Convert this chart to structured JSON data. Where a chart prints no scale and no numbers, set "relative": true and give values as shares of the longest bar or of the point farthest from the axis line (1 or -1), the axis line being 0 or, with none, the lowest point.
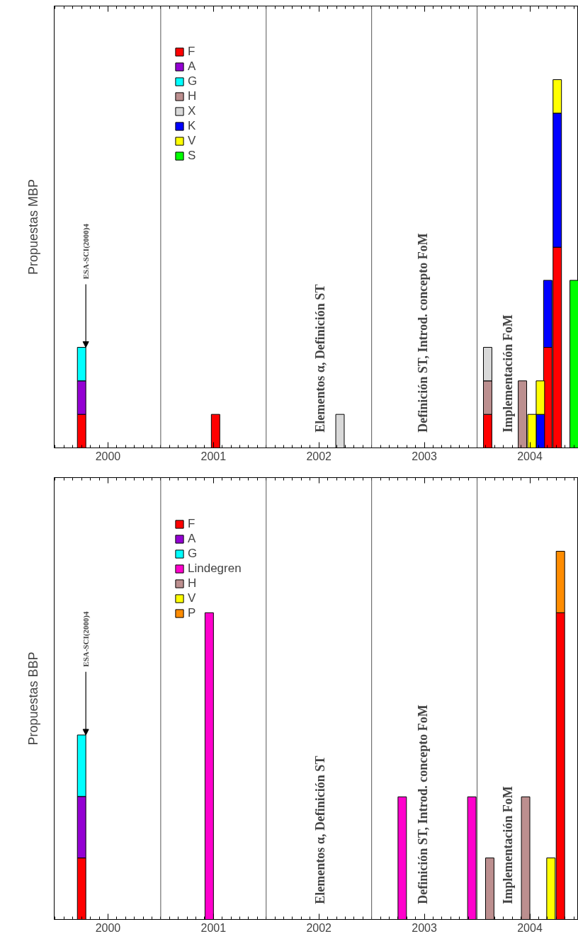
{
  "chart_data": [
    {
      "type": "bar",
      "stacked": true,
      "relative": true,
      "ylabel": "Propuestas MBP",
      "legend": "top left",
      "xlim": [
        1999.49,
        2004.46
      ],
      "xticks": [
        2000,
        2001,
        2002,
        2003,
        2004
      ],
      "x": [
        1999.75,
        2001.02,
        2002.2,
        2003.6,
        2003.93,
        2004.02,
        2004.1,
        2004.17,
        2004.26,
        2004.42
      ],
      "series": [
        {
          "name": "F",
          "color": "#ff0000",
          "values": [
            0.091,
            0.091,
            null,
            0.091,
            null,
            null,
            null,
            0.273,
            0.545,
            null
          ]
        },
        {
          "name": "A",
          "color": "#9400d3",
          "values": [
            0.091,
            null,
            null,
            null,
            null,
            null,
            null,
            null,
            null,
            null
          ]
        },
        {
          "name": "G",
          "color": "#00ffff",
          "values": [
            0.091,
            null,
            null,
            null,
            null,
            null,
            null,
            null,
            null,
            null
          ]
        },
        {
          "name": "H",
          "color": "#bc8f8f",
          "values": [
            null,
            null,
            null,
            0.091,
            0.182,
            null,
            null,
            null,
            null,
            null
          ]
        },
        {
          "name": "X",
          "color": "#d9d9d9",
          "values": [
            null,
            null,
            0.091,
            0.091,
            null,
            null,
            null,
            null,
            null,
            null
          ]
        },
        {
          "name": "K",
          "color": "#0000ff",
          "values": [
            null,
            null,
            null,
            null,
            null,
            null,
            0.091,
            0.182,
            0.364,
            null
          ]
        },
        {
          "name": "V",
          "color": "#ffff00",
          "values": [
            null,
            null,
            null,
            null,
            null,
            0.091,
            0.091,
            null,
            0.091,
            null
          ]
        },
        {
          "name": "S",
          "color": "#00ff00",
          "values": [
            null,
            null,
            null,
            null,
            null,
            null,
            null,
            null,
            null,
            0.455
          ]
        }
      ],
      "ref_lines": [
        {
          "axis": "x",
          "value": 2000.5,
          "label": null,
          "color": "#555555"
        },
        {
          "axis": "x",
          "value": 2001.5,
          "label": null,
          "color": "#555555"
        },
        {
          "axis": "x",
          "value": 2002.5,
          "label": null,
          "color": "#555555"
        },
        {
          "axis": "x",
          "value": 2003.5,
          "label": null,
          "color": "#555555"
        }
      ],
      "annotations": [
        "ESA-SCI(2000)4",
        "Elementos α, Definición ST",
        "Definición ST, Introd. concepto FoM",
        "Implementación FoM"
      ]
    },
    {
      "type": "bar",
      "stacked": true,
      "relative": true,
      "ylabel": "Propuestas BBP",
      "legend": "top left",
      "xlim": [
        1999.49,
        2004.46
      ],
      "xticks": [
        2000,
        2001,
        2002,
        2003,
        2004
      ],
      "x": [
        1999.75,
        2000.96,
        2002.79,
        2003.45,
        2003.62,
        2003.96,
        2004.2,
        2004.29
      ],
      "series": [
        {
          "name": "F",
          "color": "#ff0000",
          "values": [
            0.167,
            null,
            null,
            null,
            null,
            null,
            null,
            0.833
          ]
        },
        {
          "name": "A",
          "color": "#9400d3",
          "values": [
            0.167,
            null,
            null,
            null,
            null,
            null,
            null,
            null
          ]
        },
        {
          "name": "G",
          "color": "#00ffff",
          "values": [
            0.167,
            null,
            null,
            null,
            null,
            null,
            null,
            null
          ]
        },
        {
          "name": "Lindegren",
          "color": "#ff00cc",
          "values": [
            null,
            0.833,
            0.333,
            0.333,
            null,
            null,
            null,
            null
          ]
        },
        {
          "name": "H",
          "color": "#bc8f8f",
          "values": [
            null,
            null,
            null,
            null,
            0.167,
            0.333,
            null,
            null
          ]
        },
        {
          "name": "V",
          "color": "#ffff00",
          "values": [
            null,
            null,
            null,
            null,
            null,
            null,
            0.167,
            null
          ]
        },
        {
          "name": "P",
          "color": "#ff8c00",
          "values": [
            null,
            null,
            null,
            null,
            null,
            null,
            null,
            0.167
          ]
        }
      ],
      "ref_lines": [
        {
          "axis": "x",
          "value": 2000.5,
          "label": null,
          "color": "#555555"
        },
        {
          "axis": "x",
          "value": 2001.5,
          "label": null,
          "color": "#555555"
        },
        {
          "axis": "x",
          "value": 2002.5,
          "label": null,
          "color": "#555555"
        },
        {
          "axis": "x",
          "value": 2003.5,
          "label": null,
          "color": "#555555"
        }
      ],
      "annotations": [
        "ESA-SCI(2000)4",
        "Elementos α, Definición ST",
        "Definición ST, Introd. concepto FoM",
        "Implementación FoM"
      ]
    }
  ]
}
